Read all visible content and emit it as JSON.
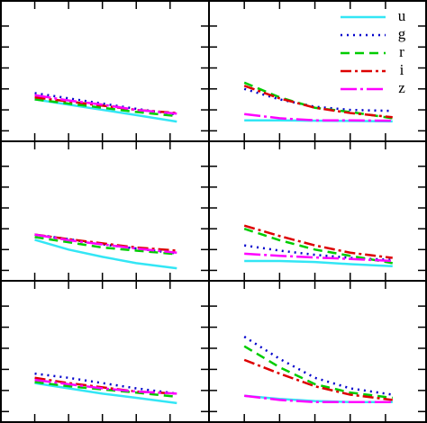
{
  "chart_data": [
    {
      "type": "line",
      "x": [
        1,
        2,
        3,
        4,
        5.2
      ],
      "xlim": [
        0,
        6.15
      ],
      "ylim": [
        -0.5,
        6.2
      ],
      "xticks": [
        1,
        2,
        3,
        4,
        5
      ],
      "yticks": [
        0,
        1,
        2,
        3,
        4,
        5
      ],
      "series": [
        {
          "color": "#33e6f5",
          "style": "solid",
          "values": [
            1.5,
            1.25,
            1.0,
            0.75,
            0.44
          ]
        },
        {
          "color": "#0000cc",
          "style": "dotted",
          "values": [
            1.8,
            1.55,
            1.3,
            1.05,
            0.78
          ]
        },
        {
          "color": "#00cc00",
          "style": "dashed",
          "values": [
            1.5,
            1.3,
            1.1,
            0.9,
            0.7
          ]
        },
        {
          "color": "#dd0000",
          "style": "dashdot",
          "values": [
            1.6,
            1.4,
            1.2,
            1.0,
            0.85
          ]
        },
        {
          "color": "#ff00ff",
          "style": "longdashdot",
          "values": [
            1.7,
            1.45,
            1.25,
            1.0,
            0.82
          ]
        }
      ]
    },
    {
      "type": "line",
      "x": [
        1,
        2,
        3,
        4,
        5.2
      ],
      "xlim": [
        0,
        6.15
      ],
      "ylim": [
        -0.5,
        6.2
      ],
      "xticks": [
        1,
        2,
        3,
        4,
        5
      ],
      "yticks": [
        0,
        1,
        2,
        3,
        4,
        5
      ],
      "legend": "upper right",
      "series": [
        {
          "name": "u",
          "color": "#33e6f5",
          "style": "solid",
          "values": [
            0.5,
            0.5,
            0.48,
            0.47,
            0.45
          ]
        },
        {
          "name": "g",
          "color": "#0000cc",
          "style": "dotted",
          "values": [
            2.0,
            1.5,
            1.15,
            1.0,
            0.95
          ]
        },
        {
          "name": "r",
          "color": "#00cc00",
          "style": "dashed",
          "values": [
            2.3,
            1.6,
            1.1,
            0.9,
            0.6
          ]
        },
        {
          "name": "i",
          "color": "#dd0000",
          "style": "dashdot",
          "values": [
            2.15,
            1.55,
            1.1,
            0.85,
            0.65
          ]
        },
        {
          "name": "z",
          "color": "#ff00ff",
          "style": "longdashdot",
          "values": [
            0.8,
            0.6,
            0.5,
            0.5,
            0.48
          ]
        }
      ]
    },
    {
      "type": "line",
      "x": [
        1,
        2,
        3,
        4,
        5.2
      ],
      "xlim": [
        0,
        6.15
      ],
      "ylim": [
        -0.5,
        6.2
      ],
      "xticks": [
        1,
        2,
        3,
        4,
        5
      ],
      "yticks": [
        0,
        1,
        2,
        3,
        4,
        5
      ],
      "series": [
        {
          "color": "#33e6f5",
          "style": "solid",
          "values": [
            1.47,
            1.0,
            0.65,
            0.35,
            0.1
          ]
        },
        {
          "color": "#0000cc",
          "style": "dotted",
          "values": [
            1.72,
            1.5,
            1.25,
            1.05,
            0.82
          ]
        },
        {
          "color": "#00cc00",
          "style": "dashed",
          "values": [
            1.6,
            1.35,
            1.1,
            0.95,
            0.78
          ]
        },
        {
          "color": "#dd0000",
          "style": "dashdot",
          "values": [
            1.72,
            1.5,
            1.3,
            1.1,
            0.95
          ]
        },
        {
          "color": "#ff00ff",
          "style": "longdashdot",
          "values": [
            1.72,
            1.45,
            1.25,
            1.05,
            0.85
          ]
        }
      ]
    },
    {
      "type": "line",
      "x": [
        1,
        2,
        3,
        4,
        5.2
      ],
      "xlim": [
        0,
        6.15
      ],
      "ylim": [
        -0.5,
        6.2
      ],
      "xticks": [
        1,
        2,
        3,
        4,
        5
      ],
      "yticks": [
        0,
        1,
        2,
        3,
        4,
        5
      ],
      "series": [
        {
          "color": "#33e6f5",
          "style": "solid",
          "values": [
            0.45,
            0.45,
            0.4,
            0.3,
            0.2
          ]
        },
        {
          "color": "#0000cc",
          "style": "dotted",
          "values": [
            1.2,
            0.95,
            0.75,
            0.6,
            0.5
          ]
        },
        {
          "color": "#00cc00",
          "style": "dashed",
          "values": [
            2.0,
            1.45,
            1.0,
            0.7,
            0.35
          ]
        },
        {
          "color": "#dd0000",
          "style": "dashdot",
          "values": [
            2.15,
            1.65,
            1.2,
            0.85,
            0.6
          ]
        },
        {
          "color": "#ff00ff",
          "style": "longdashdot",
          "values": [
            0.8,
            0.7,
            0.62,
            0.55,
            0.45
          ]
        }
      ]
    },
    {
      "type": "line",
      "x": [
        1,
        2,
        3,
        4,
        5.2
      ],
      "xlim": [
        0,
        6.15
      ],
      "ylim": [
        -0.5,
        6.2
      ],
      "xticks": [
        1,
        2,
        3,
        4,
        5
      ],
      "yticks": [
        0,
        1,
        2,
        3,
        4,
        5
      ],
      "series": [
        {
          "color": "#33e6f5",
          "style": "solid",
          "values": [
            1.35,
            1.1,
            0.85,
            0.65,
            0.4
          ]
        },
        {
          "color": "#0000cc",
          "style": "dotted",
          "values": [
            1.8,
            1.6,
            1.35,
            1.1,
            0.85
          ]
        },
        {
          "color": "#00cc00",
          "style": "dashed",
          "values": [
            1.4,
            1.2,
            1.05,
            0.9,
            0.7
          ]
        },
        {
          "color": "#dd0000",
          "style": "dashdot",
          "values": [
            1.6,
            1.35,
            1.15,
            0.95,
            0.85
          ]
        },
        {
          "color": "#ff00ff",
          "style": "longdashdot",
          "values": [
            1.5,
            1.3,
            1.1,
            0.95,
            0.85
          ]
        }
      ]
    },
    {
      "type": "line",
      "x": [
        1,
        2,
        3,
        4,
        5.2
      ],
      "xlim": [
        0,
        6.15
      ],
      "ylim": [
        -0.5,
        6.2
      ],
      "xticks": [
        1,
        2,
        3,
        4,
        5
      ],
      "yticks": [
        0,
        1,
        2,
        3,
        4,
        5
      ],
      "series": [
        {
          "color": "#33e6f5",
          "style": "solid",
          "values": [
            0.75,
            0.6,
            0.5,
            0.45,
            0.45
          ]
        },
        {
          "color": "#0000cc",
          "style": "dotted",
          "values": [
            3.55,
            2.5,
            1.6,
            1.1,
            0.8
          ]
        },
        {
          "color": "#00cc00",
          "style": "dashed",
          "values": [
            3.1,
            2.1,
            1.3,
            0.9,
            0.65
          ]
        },
        {
          "color": "#dd0000",
          "style": "dashdot",
          "values": [
            2.45,
            1.8,
            1.2,
            0.8,
            0.55
          ]
        },
        {
          "color": "#ff00ff",
          "style": "longdashdot",
          "values": [
            0.75,
            0.55,
            0.45,
            0.45,
            0.45
          ]
        }
      ]
    }
  ]
}
